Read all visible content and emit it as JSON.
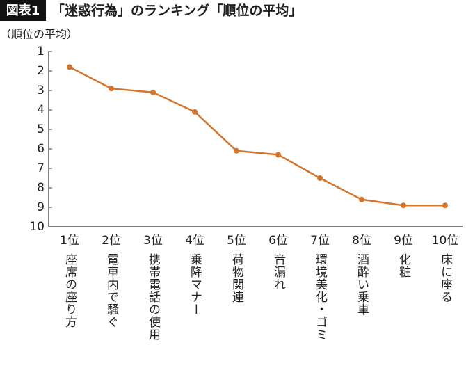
{
  "chart_data": {
    "type": "line",
    "badge": "図表1",
    "title": "「迷惑行為」のランキング「順位の平均」",
    "y_label": "（順位の平均）",
    "categories": [
      "1位",
      "2位",
      "3位",
      "4位",
      "5位",
      "6位",
      "7位",
      "8位",
      "9位",
      "10位"
    ],
    "category_names": [
      "座席の座り方",
      "電車内で騒ぐ",
      "携帯電話の使用",
      "乗降マナー",
      "荷物関連",
      "音漏れ",
      "環境美化・ゴミ",
      "酒酔い乗車",
      "化粧",
      "床に座る"
    ],
    "values": [
      1.8,
      2.9,
      3.1,
      4.1,
      6.1,
      6.3,
      7.5,
      8.6,
      8.9,
      8.9
    ],
    "color": "#d4752e",
    "ylim": [
      1,
      10
    ],
    "y_inverted": true,
    "yticks": [
      1,
      2,
      3,
      4,
      5,
      6,
      7,
      8,
      9,
      10
    ]
  }
}
